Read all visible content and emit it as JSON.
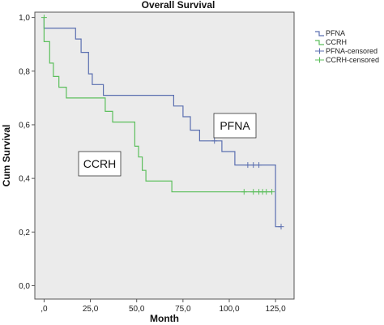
{
  "chart_data": {
    "type": "line",
    "title": "Overall Survival",
    "xlabel": "Month",
    "ylabel": "Cum Survival",
    "xlim": [
      -5,
      135
    ],
    "ylim": [
      -0.05,
      1.02
    ],
    "x_ticks": [
      0,
      25,
      50,
      75,
      100,
      125
    ],
    "x_tick_labels": [
      ",0",
      "25,0",
      "50,0",
      "75,0",
      "100,0",
      "125,0"
    ],
    "y_ticks": [
      0,
      0.2,
      0.4,
      0.6,
      0.8,
      1.0
    ],
    "y_tick_labels": [
      "0,0",
      "0,2",
      "0,4",
      "0,6",
      "0,8",
      "1,0"
    ],
    "grid": false,
    "legend_position": "right",
    "legend": [
      "PFNA",
      "CCRH",
      "PFNA-censored",
      "CCRH-censored"
    ],
    "annotations": [
      "PFNA",
      "CCRH"
    ],
    "colors": {
      "PFNA": "#5b6fb0",
      "CCRH": "#5cbf5c",
      "plot_bg": "#ebebeb"
    },
    "series": [
      {
        "name": "PFNA",
        "steps": [
          [
            0,
            1.0
          ],
          [
            0,
            0.96
          ],
          [
            17,
            0.96
          ],
          [
            17,
            0.92
          ],
          [
            20,
            0.92
          ],
          [
            20,
            0.87
          ],
          [
            24,
            0.87
          ],
          [
            24,
            0.79
          ],
          [
            26,
            0.79
          ],
          [
            26,
            0.75
          ],
          [
            32,
            0.75
          ],
          [
            32,
            0.71
          ],
          [
            70,
            0.71
          ],
          [
            70,
            0.67
          ],
          [
            75,
            0.67
          ],
          [
            75,
            0.63
          ],
          [
            79,
            0.63
          ],
          [
            79,
            0.58
          ],
          [
            84,
            0.58
          ],
          [
            84,
            0.54
          ],
          [
            96,
            0.54
          ],
          [
            96,
            0.5
          ],
          [
            103,
            0.5
          ],
          [
            103,
            0.45
          ],
          [
            125,
            0.45
          ],
          [
            125,
            0.22
          ],
          [
            128,
            0.22
          ]
        ],
        "censored": [
          [
            92,
            0.54
          ],
          [
            110,
            0.45
          ],
          [
            113,
            0.45
          ],
          [
            116,
            0.45
          ],
          [
            128,
            0.22
          ]
        ]
      },
      {
        "name": "CCRH",
        "steps": [
          [
            0,
            1.0
          ],
          [
            0,
            0.91
          ],
          [
            3,
            0.91
          ],
          [
            3,
            0.83
          ],
          [
            5,
            0.83
          ],
          [
            5,
            0.78
          ],
          [
            8,
            0.78
          ],
          [
            8,
            0.74
          ],
          [
            12,
            0.74
          ],
          [
            12,
            0.7
          ],
          [
            33,
            0.7
          ],
          [
            33,
            0.65
          ],
          [
            37,
            0.65
          ],
          [
            37,
            0.61
          ],
          [
            49,
            0.61
          ],
          [
            49,
            0.52
          ],
          [
            51,
            0.52
          ],
          [
            51,
            0.48
          ],
          [
            53,
            0.48
          ],
          [
            53,
            0.43
          ],
          [
            55,
            0.43
          ],
          [
            55,
            0.39
          ],
          [
            69,
            0.39
          ],
          [
            69,
            0.35
          ],
          [
            123,
            0.35
          ]
        ],
        "censored": [
          [
            0,
            1.0
          ],
          [
            108,
            0.35
          ],
          [
            113,
            0.35
          ],
          [
            116,
            0.35
          ],
          [
            118,
            0.35
          ],
          [
            120,
            0.35
          ],
          [
            123,
            0.35
          ]
        ]
      }
    ]
  }
}
